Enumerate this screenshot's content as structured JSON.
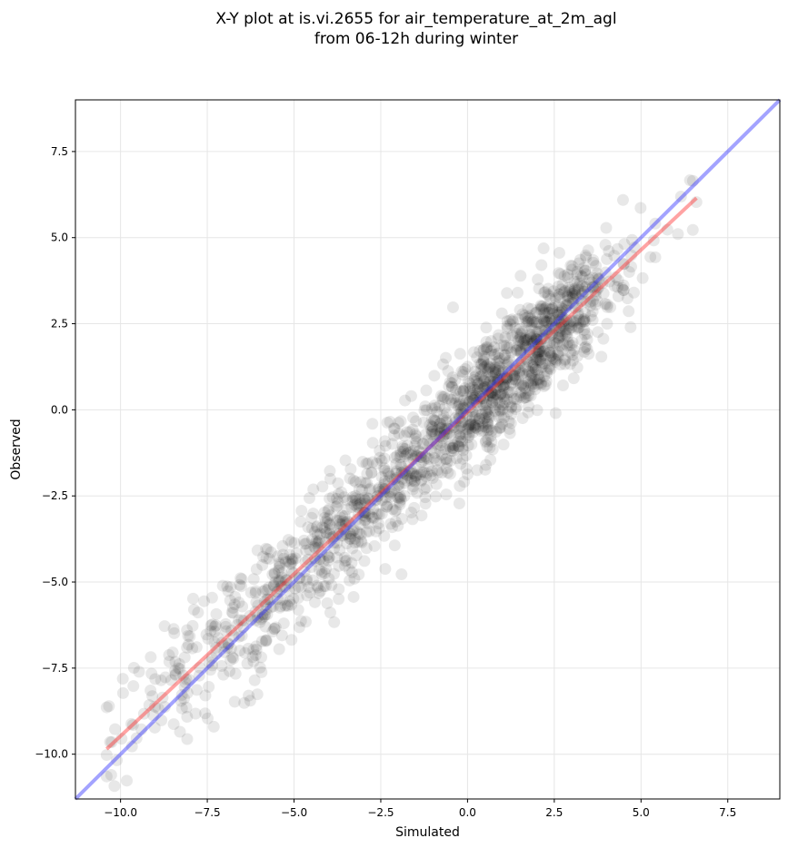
{
  "chart_data": {
    "type": "scatter",
    "title_lines": [
      "X-Y plot at is.vi.2655 for air_temperature_at_2m_agl",
      "from 06-12h during winter"
    ],
    "xlabel": "Simulated",
    "ylabel": "Observed",
    "xlim": [
      -11.3,
      9.0
    ],
    "ylim": [
      -11.3,
      9.0
    ],
    "xticks": [
      -10.0,
      -7.5,
      -5.0,
      -2.5,
      0.0,
      2.5,
      5.0,
      7.5
    ],
    "yticks": [
      -10.0,
      -7.5,
      -5.0,
      -2.5,
      0.0,
      2.5,
      5.0,
      7.5
    ],
    "xtick_labels": [
      "−10.0",
      "−7.5",
      "−5.0",
      "−2.5",
      "0.0",
      "2.5",
      "5.0",
      "7.5"
    ],
    "ytick_labels": [
      "−10.0",
      "−7.5",
      "−5.0",
      "−2.5",
      "0.0",
      "2.5",
      "5.0",
      "7.5"
    ],
    "grid": true,
    "point_color": "#000000",
    "point_opacity": 0.09,
    "sample": {
      "n": 1600,
      "x_range": [
        -10.4,
        6.6
      ],
      "regression_slope": 0.94,
      "regression_intercept": -0.05,
      "residual_sd": 0.85
    },
    "regression_line": {
      "color": "#ff3333",
      "opacity": 0.45,
      "x": [
        -10.4,
        6.6
      ],
      "y": [
        -9.85,
        6.15
      ]
    },
    "identity_line": {
      "color": "#3333ff",
      "opacity": 0.45,
      "x": [
        -11.3,
        9.0
      ],
      "y": [
        -11.3,
        9.0
      ]
    }
  }
}
